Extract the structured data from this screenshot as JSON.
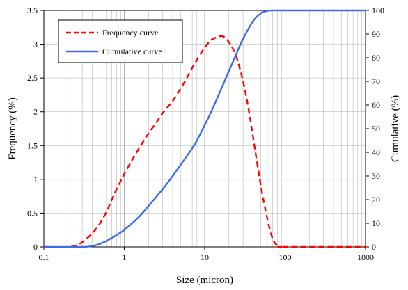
{
  "chart_data": {
    "type": "line",
    "xlabel": "Size (micron)",
    "ylabel_left": "Frequency  (%)",
    "ylabel_right": "Cumulative  (%)",
    "x_scale": "log",
    "xlim": [
      0.1,
      1000
    ],
    "ylim_left": [
      0,
      3.5
    ],
    "ylim_right": [
      0,
      100
    ],
    "x_ticks": [
      0.1,
      1,
      10,
      100,
      1000
    ],
    "x_tick_labels": [
      "0.1",
      "1",
      "10",
      "100",
      "1000"
    ],
    "y_left_ticks": [
      0,
      0.5,
      1,
      1.5,
      2,
      2.5,
      3,
      3.5
    ],
    "y_left_tick_labels": [
      "0",
      "0.5",
      "1",
      "1.5",
      "2",
      "2.5",
      "3",
      "3.5"
    ],
    "y_right_ticks": [
      0,
      10,
      20,
      30,
      40,
      50,
      60,
      70,
      80,
      90,
      100
    ],
    "y_right_tick_labels": [
      "0",
      "10",
      "20",
      "30",
      "40",
      "50",
      "60",
      "70",
      "80",
      "90",
      "100"
    ],
    "grid": "vertical minor and major log grid, horizontal major grid",
    "legend_position": "top-left",
    "series": [
      {
        "name": "Frequency curve",
        "axis": "left",
        "color": "#ff0000",
        "style": "dashed",
        "x": [
          0.1,
          0.2,
          0.25,
          0.3,
          0.4,
          0.5,
          0.6,
          0.7,
          0.8,
          1.0,
          1.3,
          1.6,
          2.0,
          2.5,
          3.0,
          4.0,
          5.0,
          6.0,
          7.0,
          8.0,
          10.0,
          12.0,
          14.0,
          16.0,
          18.0,
          20.0,
          22.0,
          25.0,
          30.0,
          35.0,
          40.0,
          50.0,
          60.0,
          70.0,
          80.0,
          90.0,
          100.0,
          1000.0
        ],
        "y": [
          0,
          0,
          0.02,
          0.07,
          0.2,
          0.35,
          0.52,
          0.7,
          0.85,
          1.08,
          1.32,
          1.5,
          1.68,
          1.84,
          1.98,
          2.16,
          2.34,
          2.5,
          2.65,
          2.77,
          2.95,
          3.06,
          3.1,
          3.12,
          3.1,
          3.03,
          2.95,
          2.8,
          2.45,
          2.05,
          1.62,
          0.9,
          0.42,
          0.12,
          0.02,
          0,
          0,
          0
        ]
      },
      {
        "name": "Cumulative curve",
        "axis": "right",
        "color": "#3c6be6",
        "style": "solid",
        "x": [
          0.1,
          0.3,
          0.4,
          0.5,
          0.6,
          0.7,
          0.8,
          1.0,
          1.5,
          2.0,
          3.0,
          4.0,
          5.0,
          6.0,
          7.0,
          8.0,
          10.0,
          12.0,
          15.0,
          20.0,
          25.0,
          30.0,
          40.0,
          50.0,
          60.0,
          70.0,
          100.0,
          1000.0
        ],
        "y": [
          0,
          0,
          0.4,
          1.3,
          2.5,
          3.8,
          5.0,
          7.2,
          12.5,
          17.3,
          24.4,
          30.0,
          34.6,
          38.4,
          41.7,
          45.0,
          51.5,
          57.0,
          64.5,
          74.3,
          82.0,
          88.0,
          95.5,
          98.8,
          99.8,
          100,
          100,
          100
        ]
      }
    ]
  }
}
